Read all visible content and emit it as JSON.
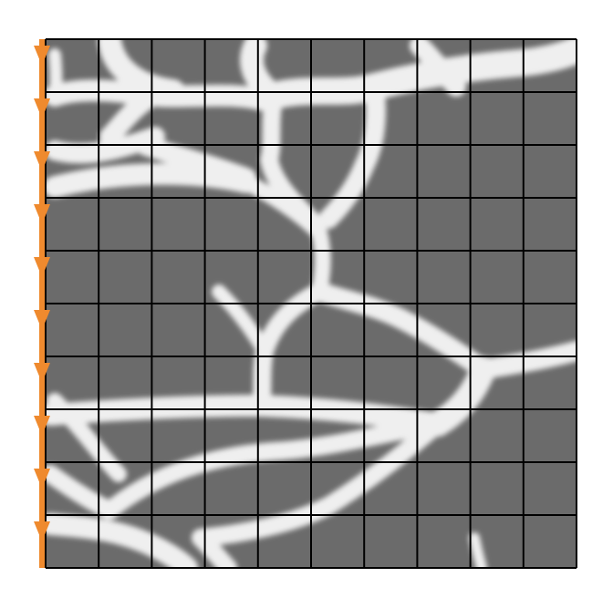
{
  "figure": {
    "grid": {
      "rows": 10,
      "cols": 10
    },
    "colors": {
      "background": "#ffffff",
      "material_dark": "#6b6b6b",
      "material_light": "#efefef",
      "grid_line": "#000000",
      "boundary_arrow": "#ef8a2e"
    },
    "boundary": {
      "edge": "left",
      "arrow_count": 10,
      "arrow_direction": "down",
      "icon": "down-arrow-icon"
    }
  }
}
